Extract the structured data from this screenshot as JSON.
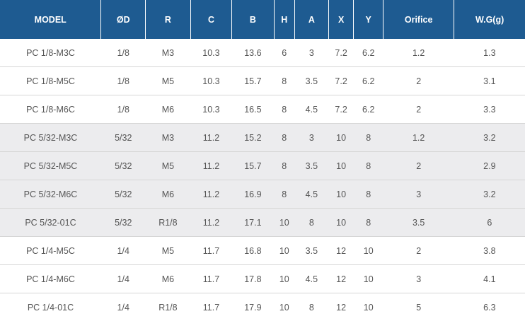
{
  "table": {
    "headers": [
      "MODEL",
      "ØD",
      "R",
      "C",
      "B",
      "H",
      "A",
      "X",
      "Y",
      "Orifice",
      "W.G(g)"
    ],
    "rows": [
      {
        "shaded": false,
        "cells": [
          "PC 1/8-M3C",
          "1/8",
          "M3",
          "10.3",
          "13.6",
          "6",
          "3",
          "7.2",
          "6.2",
          "1.2",
          "1.3"
        ]
      },
      {
        "shaded": false,
        "cells": [
          "PC 1/8-M5C",
          "1/8",
          "M5",
          "10.3",
          "15.7",
          "8",
          "3.5",
          "7.2",
          "6.2",
          "2",
          "3.1"
        ]
      },
      {
        "shaded": false,
        "cells": [
          "PC 1/8-M6C",
          "1/8",
          "M6",
          "10.3",
          "16.5",
          "8",
          "4.5",
          "7.2",
          "6.2",
          "2",
          "3.3"
        ]
      },
      {
        "shaded": true,
        "cells": [
          "PC 5/32-M3C",
          "5/32",
          "M3",
          "11.2",
          "15.2",
          "8",
          "3",
          "10",
          "8",
          "1.2",
          "3.2"
        ]
      },
      {
        "shaded": true,
        "cells": [
          "PC 5/32-M5C",
          "5/32",
          "M5",
          "11.2",
          "15.7",
          "8",
          "3.5",
          "10",
          "8",
          "2",
          "2.9"
        ]
      },
      {
        "shaded": true,
        "cells": [
          "PC 5/32-M6C",
          "5/32",
          "M6",
          "11.2",
          "16.9",
          "8",
          "4.5",
          "10",
          "8",
          "3",
          "3.2"
        ]
      },
      {
        "shaded": true,
        "cells": [
          "PC 5/32-01C",
          "5/32",
          "R1/8",
          "11.2",
          "17.1",
          "10",
          "8",
          "10",
          "8",
          "3.5",
          "6"
        ]
      },
      {
        "shaded": false,
        "cells": [
          "PC 1/4-M5C",
          "1/4",
          "M5",
          "11.7",
          "16.8",
          "10",
          "3.5",
          "12",
          "10",
          "2",
          "3.8"
        ]
      },
      {
        "shaded": false,
        "cells": [
          "PC 1/4-M6C",
          "1/4",
          "M6",
          "11.7",
          "17.8",
          "10",
          "4.5",
          "12",
          "10",
          "3",
          "4.1"
        ]
      },
      {
        "shaded": false,
        "cells": [
          "PC 1/4-01C",
          "1/4",
          "R1/8",
          "11.7",
          "17.9",
          "10",
          "8",
          "12",
          "10",
          "5",
          "6.3"
        ]
      }
    ]
  },
  "colors": {
    "header_bg": "#1e5b91",
    "header_text": "#ffffff",
    "shaded_row_bg": "#ececee",
    "plain_row_bg": "#ffffff",
    "cell_text": "#555555"
  }
}
